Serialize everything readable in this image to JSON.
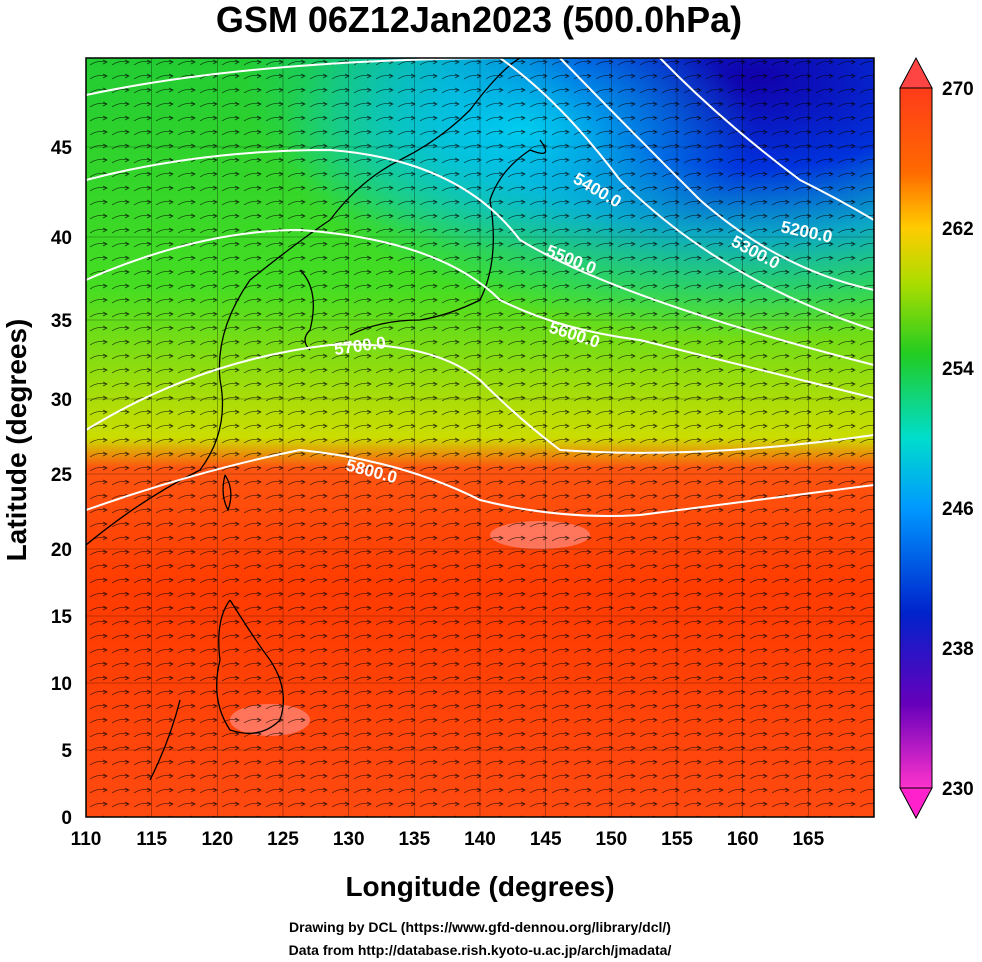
{
  "title": "GSM 06Z12Jan2023 (500.0hPa)",
  "xaxis": {
    "label": "Longitude (degrees)",
    "range": [
      110,
      170
    ],
    "ticks": [
      "110",
      "115",
      "120",
      "125",
      "130",
      "135",
      "140",
      "145",
      "150",
      "155",
      "160",
      "165"
    ]
  },
  "yaxis": {
    "label": "Latitude  (degrees)",
    "range": [
      0,
      50
    ],
    "ticks": [
      "0",
      "5",
      "10",
      "15",
      "20",
      "25",
      "30",
      "35",
      "40",
      "45"
    ]
  },
  "colorbar": {
    "min": 230,
    "max": 270,
    "ticks": [
      "270",
      "262",
      "254",
      "246",
      "238",
      "230"
    ]
  },
  "contour_labels": [
    "5200.0",
    "5300.0",
    "5400.0",
    "5500.0",
    "5600.0",
    "5700.0",
    "5800.0"
  ],
  "credits": {
    "line1": "Drawing by DCL (https://www.gfd-dennou.org/library/dcl/)",
    "line2": "Data from http://database.rish.kyoto-u.ac.jp/arch/jmadata/"
  },
  "colors": {
    "warm": "#ff3300",
    "green": "#33cc33",
    "cyan": "#00ddee",
    "blue": "#0022cc",
    "contour": "#ffffff"
  }
}
